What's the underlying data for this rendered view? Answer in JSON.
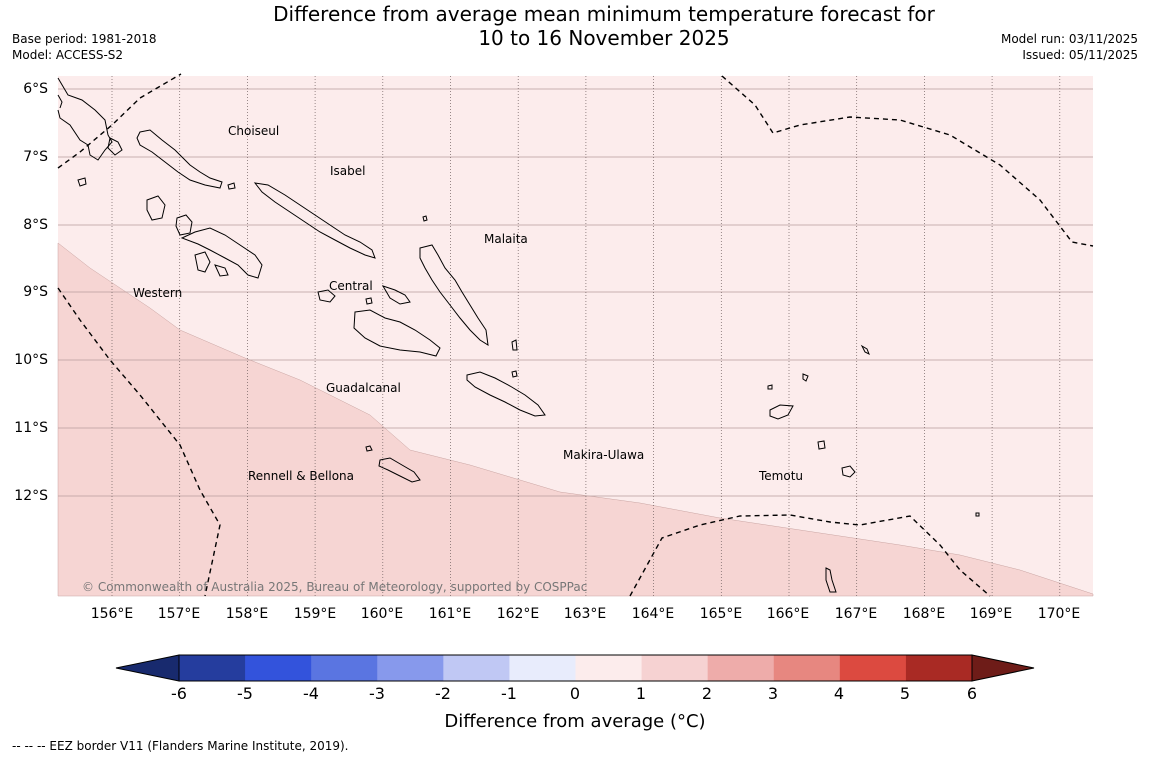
{
  "title": {
    "line1": "Difference from average mean minimum temperature forecast for",
    "line2": "10 to 16 November 2025"
  },
  "meta": {
    "base_period": "Base period: 1981-2018",
    "model": "Model: ACCESS-S2",
    "model_run": "Model run: 03/11/2025",
    "issued": "Issued: 05/11/2025"
  },
  "map": {
    "lat_labels": [
      "6°S",
      "7°S",
      "8°S",
      "9°S",
      "10°S",
      "11°S",
      "12°S"
    ],
    "lon_labels": [
      "156°E",
      "157°E",
      "158°E",
      "159°E",
      "160°E",
      "161°E",
      "162°E",
      "163°E",
      "164°E",
      "165°E",
      "166°E",
      "167°E",
      "168°E",
      "169°E",
      "170°E"
    ],
    "regions": [
      "Choiseul",
      "Isabel",
      "Malaita",
      "Western",
      "Central",
      "Guadalcanal",
      "Makira-Ulawa",
      "Rennell & Bellona",
      "Temotu"
    ],
    "copyright": "© Commonwealth of Australia 2025, Bureau of Meteorology, supported by COSPPac",
    "anomaly_class_north": "0 to 1",
    "anomaly_class_south": "1 to 2"
  },
  "colorbar": {
    "ticks": [
      "-6",
      "-5",
      "-4",
      "-3",
      "-2",
      "-1",
      "0",
      "1",
      "2",
      "3",
      "4",
      "5",
      "6"
    ],
    "colors": [
      "#253d9e",
      "#3353dc",
      "#5a75e1",
      "#8799ec",
      "#c0c8f4",
      "#e8ecfc",
      "#fcecec",
      "#f6d2d2",
      "#eeacaa",
      "#e78780",
      "#dc4a40",
      "#a92a24"
    ],
    "under_color": "#182a6e",
    "over_color": "#6e1c18",
    "label": "Difference from average (°C)"
  },
  "legend_note": "--  --  -- EEZ border V11 (Flanders Marine Institute, 2019)."
}
